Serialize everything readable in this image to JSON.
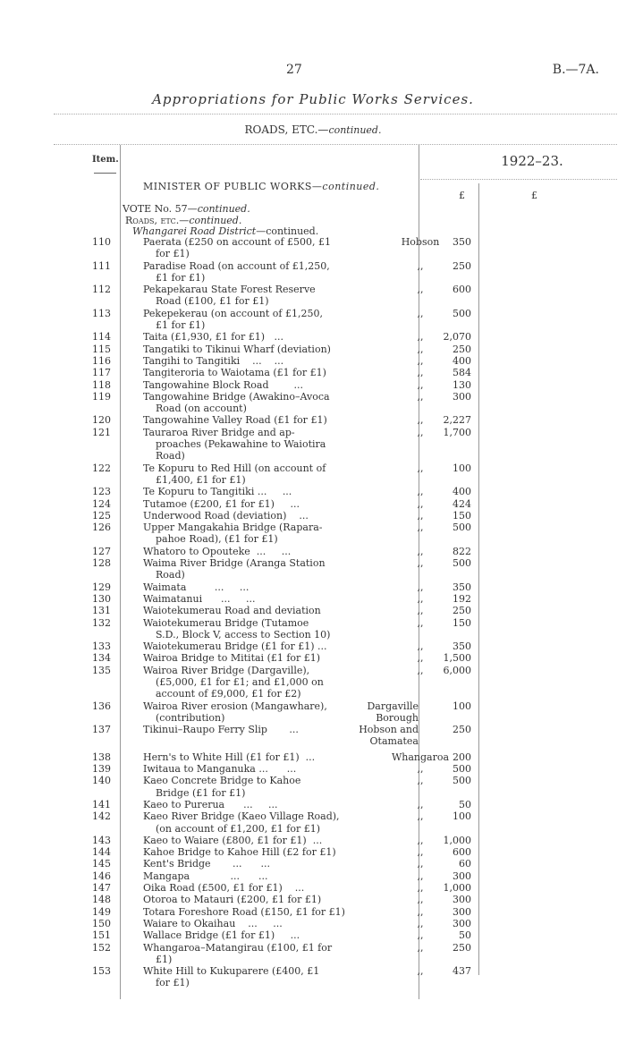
{
  "header": {
    "page_number": "27",
    "reference": "B.—7A.",
    "title": "Appropriations for Public Works Services.",
    "section": "ROADS, ETC.—",
    "section_cont": "continued."
  },
  "table": {
    "item_header": "Item.",
    "year_header": "1922–23.",
    "currency_1": "£",
    "currency_2": "£",
    "minister": "MINISTER OF PUBLIC WORKS—",
    "minister_cont": "continued.",
    "vote": "VOTE No. 57—",
    "vote_cont": "continued.",
    "roads": "Roads, etc.—",
    "roads_cont": "continued.",
    "district": "Whangarei Road District",
    "district_cont": "—continued.",
    "rows": [
      {
        "item": "110",
        "lines": [
          "Paerata (£250 on account of £500, £1",
          "for £1)"
        ],
        "district": "Hobson",
        "amount": "350"
      },
      {
        "item": "111",
        "lines": [
          "Paradise Road (on account of £1,250,",
          "£1 for £1)"
        ],
        "district": ",,",
        "amount": "250"
      },
      {
        "item": "112",
        "lines": [
          "Pekapekarau State Forest Reserve",
          "Road (£100, £1 for £1)"
        ],
        "district": ",,",
        "amount": "600"
      },
      {
        "item": "113",
        "lines": [
          "Pekepekerau (on account of £1,250,",
          "£1 for £1)"
        ],
        "district": ",,",
        "amount": "500"
      },
      {
        "item": "114",
        "lines": [
          "Taita (£1,930, £1 for £1)   ..."
        ],
        "district": ",,",
        "amount": "2,070"
      },
      {
        "item": "115",
        "lines": [
          "Tangatiki to Tikinui Wharf (deviation)"
        ],
        "district": ",,",
        "amount": "250"
      },
      {
        "item": "116",
        "lines": [
          "Tangihi to Tangitiki    ...    ..."
        ],
        "district": ",,",
        "amount": "400"
      },
      {
        "item": "117",
        "lines": [
          "Tangiteroria to Waiotama (£1 for £1)"
        ],
        "district": ",,",
        "amount": "584"
      },
      {
        "item": "118",
        "lines": [
          "Tangowahine Block Road        ..."
        ],
        "district": ",,",
        "amount": "130"
      },
      {
        "item": "119",
        "lines": [
          "Tangowahine Bridge (Awakino–Avoca",
          "Road (on account)"
        ],
        "district": ",,",
        "amount": "300"
      },
      {
        "item": "120",
        "lines": [
          "Tangowahine Valley Road (£1 for £1)"
        ],
        "district": ",,",
        "amount": "2,227"
      },
      {
        "item": "121",
        "lines": [
          "Tauraroa River Bridge and ap-",
          "proaches (Pekawahine to Waiotira",
          "Road)"
        ],
        "district": ",,",
        "amount": "1,700"
      },
      {
        "item": "122",
        "lines": [
          "Te Kopuru to Red Hill (on account of",
          "£1,400, £1 for £1)"
        ],
        "district": ",,",
        "amount": "100"
      },
      {
        "item": "123",
        "lines": [
          "Te Kopuru to Tangitiki ...     ..."
        ],
        "district": ",,",
        "amount": "400"
      },
      {
        "item": "124",
        "lines": [
          "Tutamoe (£200, £1 for £1)     ..."
        ],
        "district": ",,",
        "amount": "424"
      },
      {
        "item": "125",
        "lines": [
          "Underwood Road (deviation)    ..."
        ],
        "district": ",,",
        "amount": "150"
      },
      {
        "item": "126",
        "lines": [
          "Upper Mangakahia Bridge (Rapara-",
          "pahoe Road), (£1 for £1)"
        ],
        "district": ",,",
        "amount": "500"
      },
      {
        "item": "127",
        "lines": [
          "Whatoro to Opouteke  ...     ..."
        ],
        "district": ",,",
        "amount": "822"
      },
      {
        "item": "128",
        "lines": [
          "Waima River Bridge (Aranga Station",
          "Road)"
        ],
        "district": ",,",
        "amount": "500"
      },
      {
        "item": "129",
        "lines": [
          "Waimata         ...     ..."
        ],
        "district": ",,",
        "amount": "350"
      },
      {
        "item": "130",
        "lines": [
          "Waimatanui      ...     ..."
        ],
        "district": ",,",
        "amount": "192"
      },
      {
        "item": "131",
        "lines": [
          "Waiotekumerau Road and deviation"
        ],
        "district": ",,",
        "amount": "250"
      },
      {
        "item": "132",
        "lines": [
          "Waiotekumerau Bridge (Tutamoe",
          "S.D., Block V, access to Section 10)"
        ],
        "district": ",,",
        "amount": "150"
      },
      {
        "item": "133",
        "lines": [
          "Waiotekumerau Bridge (£1 for £1) ..."
        ],
        "district": ",,",
        "amount": "350"
      },
      {
        "item": "134",
        "lines": [
          "Wairoa Bridge to Mititai (£1 for £1)"
        ],
        "district": ",,",
        "amount": "1,500"
      },
      {
        "item": "135",
        "lines": [
          "Wairoa River Bridge (Dargaville),",
          "(£5,000, £1 for £1; and £1,000 on",
          "account of £9,000, £1 for £2)"
        ],
        "district": ",,",
        "amount": "6,000"
      },
      {
        "item": "136",
        "lines": [
          "Wairoa River erosion (Mangawhare),",
          "(contribution)"
        ],
        "district": "Dargaville Borough",
        "amount": "100"
      },
      {
        "item": "137",
        "lines": [
          "Tikinui–Raupo Ferry Slip       ..."
        ],
        "district": "Hobson and Otamatea",
        "amount": "250"
      },
      {
        "item": "138",
        "lines": [
          "Hern's to White Hill (£1 for £1)  ..."
        ],
        "district": "Whangaroa",
        "amount": "200"
      },
      {
        "item": "139",
        "lines": [
          "Iwitaua to Manganuka ...      ..."
        ],
        "district": ",,",
        "amount": "500"
      },
      {
        "item": "140",
        "lines": [
          "Kaeo Concrete Bridge to Kahoe",
          "Bridge (£1 for £1)"
        ],
        "district": ",,",
        "amount": "500"
      },
      {
        "item": "141",
        "lines": [
          "Kaeo to Purerua      ...     ..."
        ],
        "district": ",,",
        "amount": "50"
      },
      {
        "item": "142",
        "lines": [
          "Kaeo River Bridge (Kaeo Village Road),",
          "(on account of £1,200, £1 for £1)"
        ],
        "district": ",,",
        "amount": "100"
      },
      {
        "item": "143",
        "lines": [
          "Kaeo to Waiare (£800, £1 for £1)  ..."
        ],
        "district": ",,",
        "amount": "1,000"
      },
      {
        "item": "144",
        "lines": [
          "Kahoe Bridge to Kahoe Hill (£2 for £1)"
        ],
        "district": ",,",
        "amount": "600"
      },
      {
        "item": "145",
        "lines": [
          "Kent's Bridge       ...      ..."
        ],
        "district": ",,",
        "amount": "60"
      },
      {
        "item": "146",
        "lines": [
          "Mangapa             ...      ..."
        ],
        "district": ",,",
        "amount": "300"
      },
      {
        "item": "147",
        "lines": [
          "Oika Road (£500, £1 for £1)    ..."
        ],
        "district": ",,",
        "amount": "1,000"
      },
      {
        "item": "148",
        "lines": [
          "Otoroa to Matauri (£200, £1 for £1)"
        ],
        "district": ",,",
        "amount": "300"
      },
      {
        "item": "149",
        "lines": [
          "Totara Foreshore Road (£150, £1 for £1)"
        ],
        "district": ",,",
        "amount": "300"
      },
      {
        "item": "150",
        "lines": [
          "Waiare to Okaihau    ...     ..."
        ],
        "district": ",,",
        "amount": "300"
      },
      {
        "item": "151",
        "lines": [
          "Wallace Bridge (£1 for £1)     ..."
        ],
        "district": ",,",
        "amount": "50"
      },
      {
        "item": "152",
        "lines": [
          "Whangaroa–Matangirau (£100, £1 for",
          "£1)"
        ],
        "district": ",,",
        "amount": "250"
      },
      {
        "item": "153",
        "lines": [
          "White Hill to Kukuparere (£400, £1",
          "for £1)"
        ],
        "district": ",,",
        "amount": "437"
      }
    ]
  }
}
